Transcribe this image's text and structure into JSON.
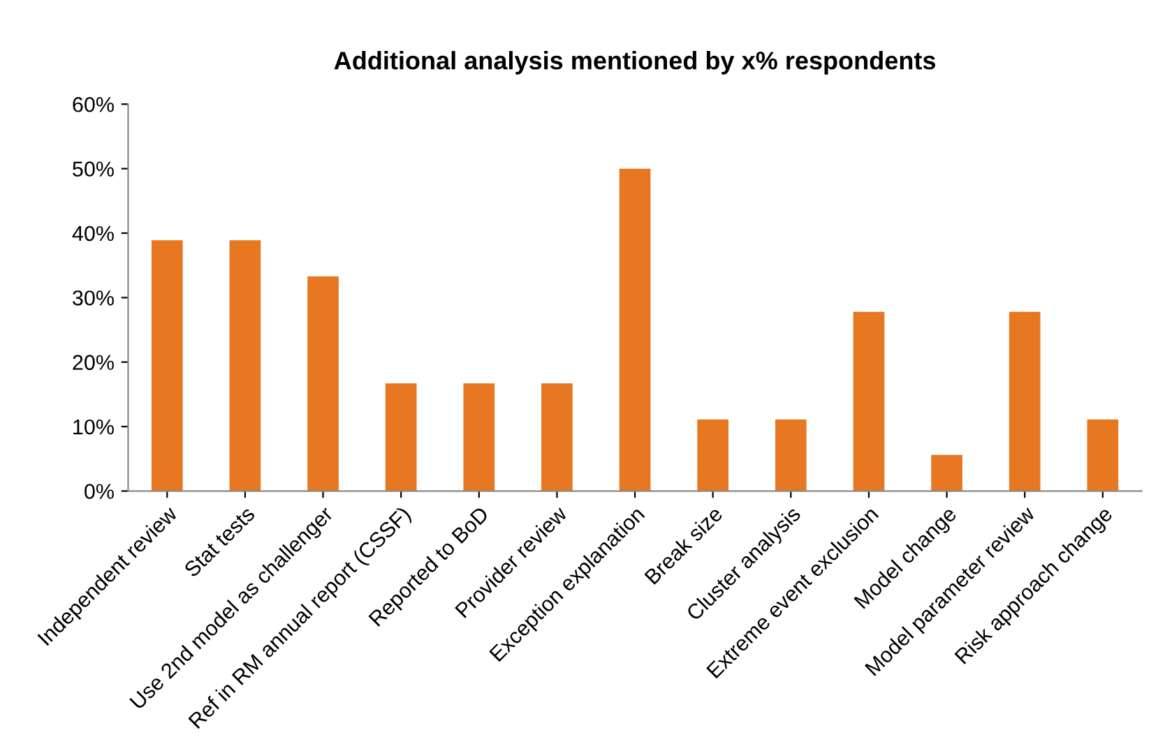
{
  "chart_data": {
    "type": "bar",
    "title": "Additional analysis mentioned by x% respondents",
    "categories": [
      "Independent review",
      "Stat tests",
      "Use 2nd model as challenger",
      "Ref in RM annual report (CSSF)",
      "Reported to BoD",
      "Provider review",
      "Exception explanation",
      "Break size",
      "Cluster analysis",
      "Extreme event exclusion",
      "Model change",
      "Model parameter review",
      "Risk approach change"
    ],
    "values": [
      38.9,
      38.9,
      33.3,
      16.7,
      16.7,
      16.7,
      50,
      11.1,
      11.1,
      27.8,
      5.6,
      27.8,
      11.1
    ],
    "color": "#e87722",
    "ylim": [
      0,
      60
    ],
    "yticks": [
      {
        "value": 0,
        "label": "0%"
      },
      {
        "value": 10,
        "label": "10%"
      },
      {
        "value": 20,
        "label": "20%"
      },
      {
        "value": 30,
        "label": "30%"
      },
      {
        "value": 40,
        "label": "40%"
      },
      {
        "value": 50,
        "label": "50%"
      },
      {
        "value": 60,
        "label": "60%"
      }
    ],
    "grid": false,
    "legend": false
  }
}
